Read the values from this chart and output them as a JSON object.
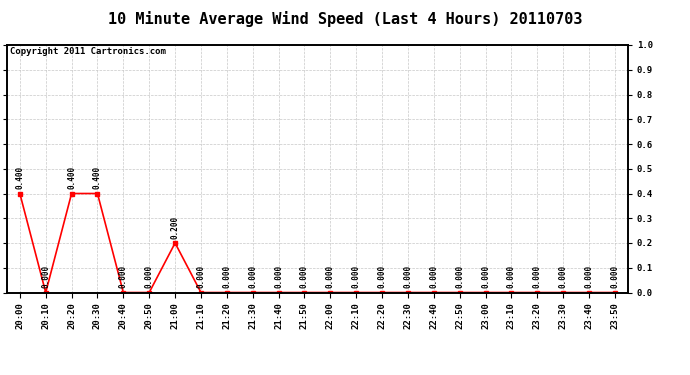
{
  "title": "10 Minute Average Wind Speed (Last 4 Hours) 20110703",
  "copyright": "Copyright 2011 Cartronics.com",
  "x_labels": [
    "20:00",
    "20:10",
    "20:20",
    "20:30",
    "20:40",
    "20:50",
    "21:00",
    "21:10",
    "21:20",
    "21:30",
    "21:40",
    "21:50",
    "22:00",
    "22:10",
    "22:20",
    "22:30",
    "22:40",
    "22:50",
    "23:00",
    "23:10",
    "23:20",
    "23:30",
    "23:40",
    "23:50"
  ],
  "y_values": [
    0.4,
    0.0,
    0.4,
    0.4,
    0.0,
    0.0,
    0.2,
    0.0,
    0.0,
    0.0,
    0.0,
    0.0,
    0.0,
    0.0,
    0.0,
    0.0,
    0.0,
    0.0,
    0.0,
    0.0,
    0.0,
    0.0,
    0.0,
    0.0
  ],
  "line_color": "#ff0000",
  "background_color": "#ffffff",
  "plot_bg_color": "#ffffff",
  "grid_color": "#c8c8c8",
  "ylim": [
    0.0,
    1.0
  ],
  "yticks": [
    0.0,
    0.1,
    0.2,
    0.3,
    0.4,
    0.5,
    0.6,
    0.7,
    0.8,
    0.9,
    1.0
  ],
  "title_fontsize": 11,
  "label_fontsize": 6.5,
  "annotation_fontsize": 5.5,
  "copyright_fontsize": 6.5
}
